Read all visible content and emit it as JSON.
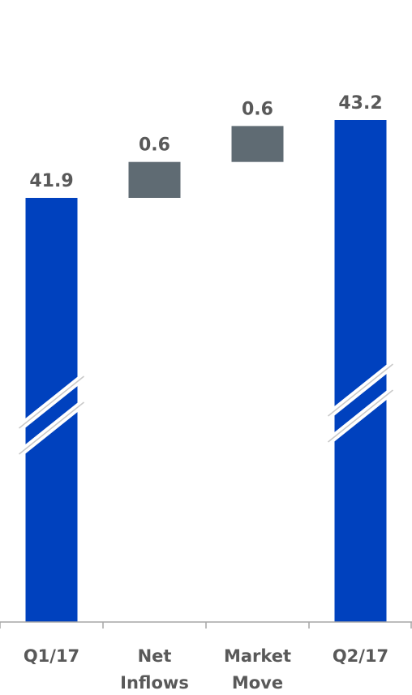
{
  "chart_data": {
    "type": "bar",
    "subtype": "waterfall",
    "title": "",
    "xlabel": "",
    "ylabel": "",
    "axis_break": true,
    "grid": false,
    "legend": "none",
    "categories": [
      [
        "Q1/17"
      ],
      [
        "Net",
        "Inflows"
      ],
      [
        "Market",
        "Move"
      ],
      [
        "Q2/17"
      ]
    ],
    "values": [
      41.9,
      0.6,
      0.6,
      43.2
    ],
    "value_labels": [
      "41.9",
      "0.6",
      "0.6",
      "43.2"
    ],
    "kinds": [
      "total",
      "delta",
      "delta",
      "total"
    ],
    "colors": {
      "total": "#0041BE",
      "delta": "#5F6B73",
      "text": "#595959",
      "axis": "#A6A6A6"
    }
  }
}
